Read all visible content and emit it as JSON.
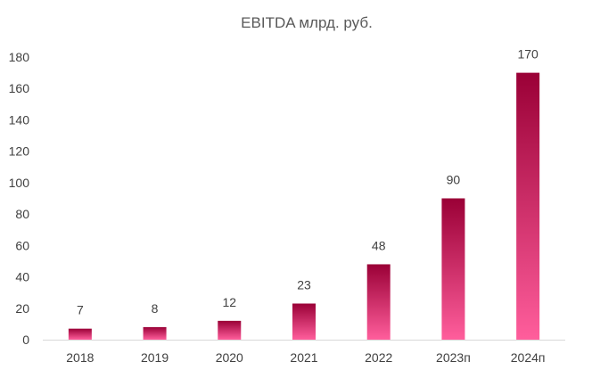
{
  "chart_data": {
    "type": "bar",
    "title": "EBITDA млрд. руб.",
    "xlabel": "",
    "ylabel": "",
    "categories": [
      "2018",
      "2019",
      "2020",
      "2021",
      "2022",
      "2023п",
      "2024п"
    ],
    "values": [
      7,
      8,
      12,
      23,
      48,
      90,
      170
    ],
    "data_labels": [
      "7",
      "8",
      "12",
      "23",
      "48",
      "90",
      "170"
    ],
    "ylim": [
      0,
      180
    ],
    "yticks": [
      0,
      20,
      40,
      60,
      80,
      100,
      120,
      140,
      160,
      180
    ],
    "grid": false,
    "legend": "none",
    "colors": {
      "bar_top": "#9a0036",
      "bar_bottom": "#ff5e9c",
      "axis": "#d9d9d9",
      "text": "#404040",
      "title": "#595959"
    }
  }
}
